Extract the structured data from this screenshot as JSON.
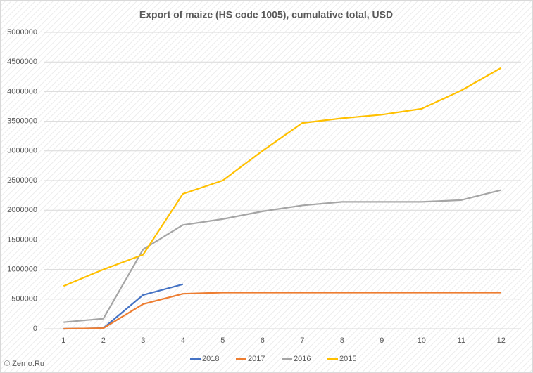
{
  "chart_data": {
    "type": "line",
    "title": "Export of maize (HS code 1005), cumulative total, USD",
    "credit": "© Zerno.Ru",
    "categories": [
      "1",
      "2",
      "3",
      "4",
      "5",
      "6",
      "7",
      "8",
      "9",
      "10",
      "11",
      "12"
    ],
    "series": [
      {
        "name": "2018",
        "color": "#4472c4",
        "values": [
          0,
          10000,
          570000,
          750000,
          null,
          null,
          null,
          null,
          null,
          null,
          null,
          null
        ]
      },
      {
        "name": "2017",
        "color": "#ed7d31",
        "values": [
          0,
          10000,
          415000,
          590000,
          610000,
          610000,
          610000,
          610000,
          610000,
          610000,
          610000,
          610000
        ]
      },
      {
        "name": "2016",
        "color": "#a5a5a5",
        "values": [
          110000,
          170000,
          1340000,
          1750000,
          1850000,
          1980000,
          2080000,
          2140000,
          2140000,
          2140000,
          2170000,
          2340000
        ]
      },
      {
        "name": "2015",
        "color": "#ffc000",
        "values": [
          720000,
          1000000,
          1250000,
          2275000,
          2500000,
          3000000,
          3470000,
          3550000,
          3610000,
          3710000,
          4020000,
          4400000
        ]
      }
    ],
    "ylim": [
      0,
      5000000
    ],
    "yticks": [
      0,
      500000,
      1000000,
      1500000,
      2000000,
      2500000,
      3000000,
      3500000,
      4000000,
      4500000,
      5000000
    ],
    "grid": true,
    "legend": "bottom"
  }
}
